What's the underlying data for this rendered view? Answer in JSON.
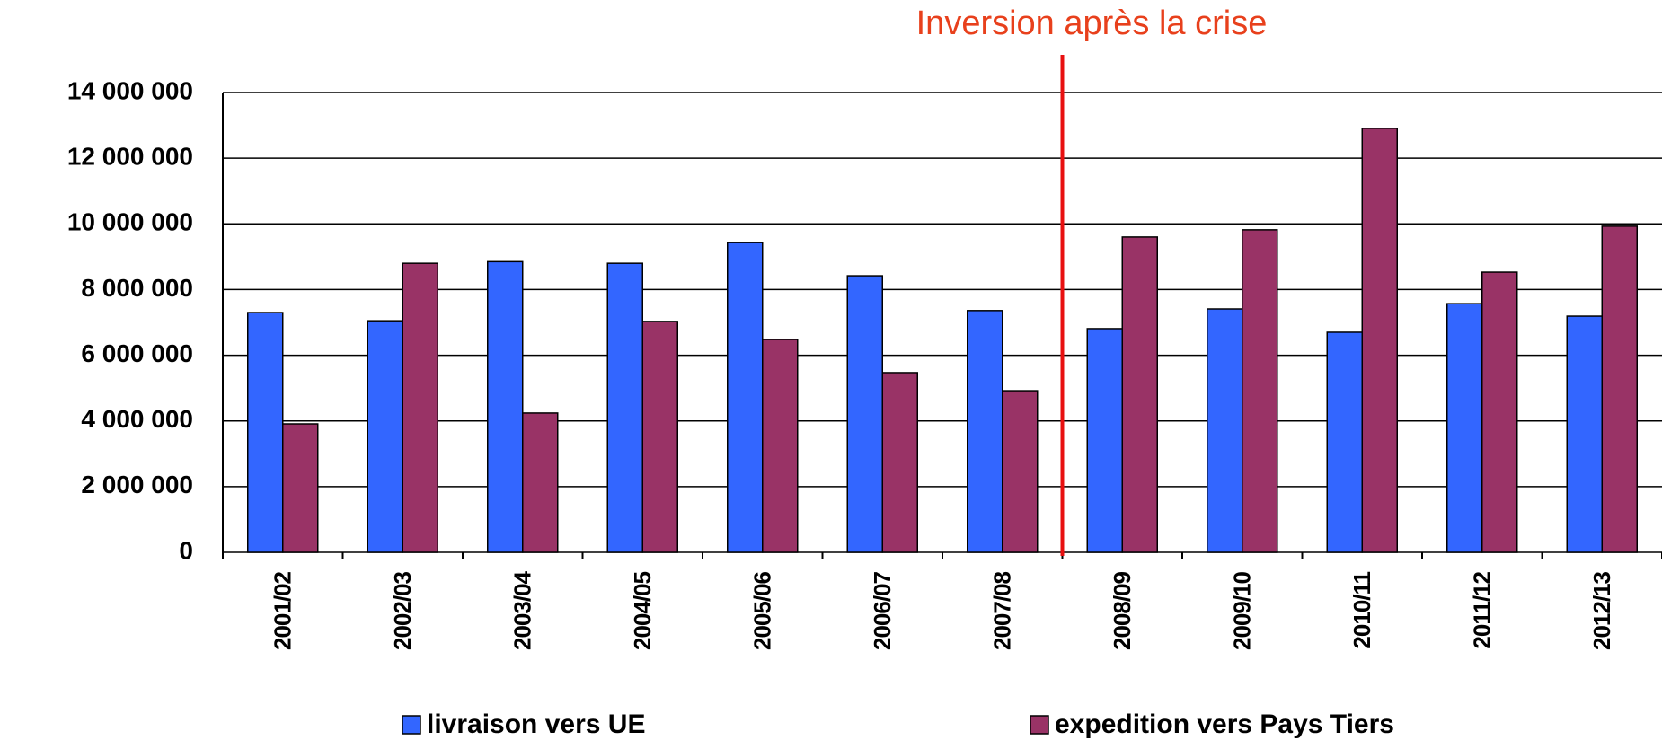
{
  "chart_data": {
    "type": "bar",
    "annotation": "Inversion après la crise",
    "categories": [
      "2001/02",
      "2002/03",
      "2003/04",
      "2004/05",
      "2005/06",
      "2006/07",
      "2007/08",
      "2008/09",
      "2009/10",
      "2010/11",
      "2011/12",
      "2012/13"
    ],
    "series": [
      {
        "name": "livraison vers UE",
        "color": "#3366ff",
        "values": [
          7300000,
          7050000,
          8850000,
          8800000,
          9430000,
          8420000,
          7360000,
          6810000,
          7410000,
          6700000,
          7570000,
          7190000
        ]
      },
      {
        "name": "expedition vers Pays Tiers",
        "color": "#993366",
        "values": [
          3910000,
          8800000,
          4240000,
          7030000,
          6480000,
          5470000,
          4920000,
          9600000,
          9820000,
          12910000,
          8530000,
          9930000
        ]
      }
    ],
    "ylim": [
      0,
      14000000
    ],
    "yticks": [
      {
        "value": 0,
        "label": "0"
      },
      {
        "value": 2000000,
        "label": "2 000 000"
      },
      {
        "value": 4000000,
        "label": "4 000 000"
      },
      {
        "value": 6000000,
        "label": "6 000 000"
      },
      {
        "value": 8000000,
        "label": "8 000 000"
      },
      {
        "value": 10000000,
        "label": "10 000 000"
      },
      {
        "value": 12000000,
        "label": "12 000 000"
      },
      {
        "value": 14000000,
        "label": "14 000 000"
      }
    ],
    "grid": true
  }
}
